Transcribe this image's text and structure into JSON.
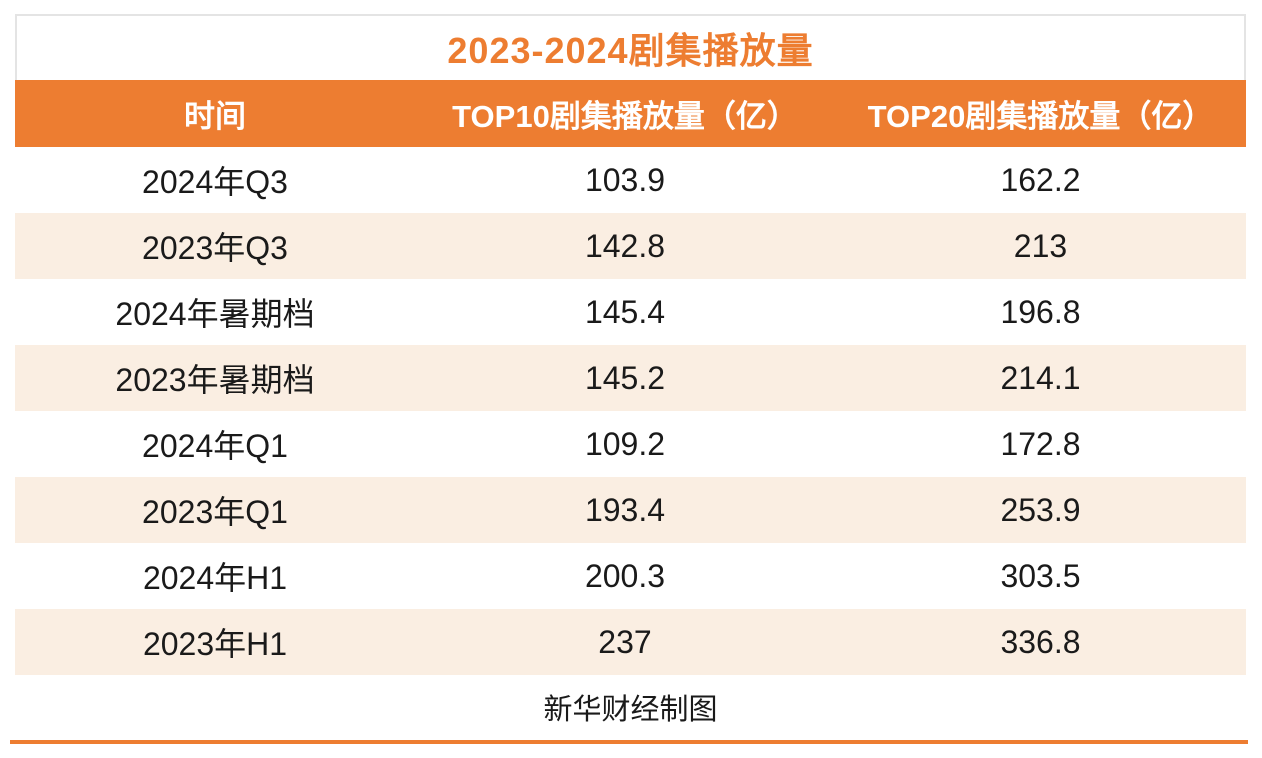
{
  "title": "2023-2024剧集播放量",
  "source_note": "新华财经制图",
  "colors": {
    "accent_orange": "#ED7D31",
    "row_alt_peach": "#FAEEE2",
    "title_border_gray": "#E4E4E4",
    "header_text": "#FFFFFF",
    "body_text": "#1A1A1A"
  },
  "table": {
    "headers": [
      "时间",
      "TOP10剧集播放量（亿）",
      "TOP20剧集播放量（亿）"
    ],
    "rows": [
      {
        "period": "2024年Q3",
        "top10": "103.9",
        "top20": "162.2"
      },
      {
        "period": "2023年Q3",
        "top10": "142.8",
        "top20": "213"
      },
      {
        "period": "2024年暑期档",
        "top10": "145.4",
        "top20": "196.8"
      },
      {
        "period": "2023年暑期档",
        "top10": "145.2",
        "top20": "214.1"
      },
      {
        "period": "2024年Q1",
        "top10": "109.2",
        "top20": "172.8"
      },
      {
        "period": "2023年Q1",
        "top10": "193.4",
        "top20": "253.9"
      },
      {
        "period": "2024年H1",
        "top10": "200.3",
        "top20": "303.5"
      },
      {
        "period": "2023年H1",
        "top10": "237",
        "top20": "336.8"
      }
    ]
  },
  "chart_data": {
    "type": "table",
    "title": "2023-2024剧集播放量",
    "categories": [
      "2024年Q3",
      "2023年Q3",
      "2024年暑期档",
      "2023年暑期档",
      "2024年Q1",
      "2023年Q1",
      "2024年H1",
      "2023年H1"
    ],
    "series": [
      {
        "name": "TOP10剧集播放量（亿）",
        "values": [
          103.9,
          142.8,
          145.4,
          145.2,
          109.2,
          193.4,
          200.3,
          237
        ]
      },
      {
        "name": "TOP20剧集播放量（亿）",
        "values": [
          162.2,
          213,
          196.8,
          214.1,
          172.8,
          253.9,
          303.5,
          336.8
        ]
      }
    ],
    "annotations": [
      "新华财经制图"
    ]
  }
}
